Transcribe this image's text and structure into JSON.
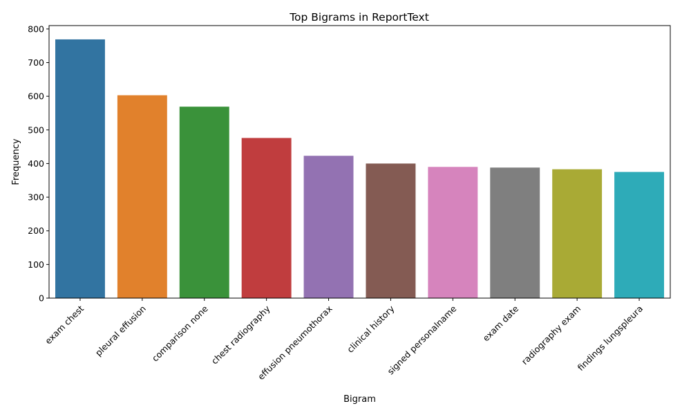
{
  "chart_data": {
    "type": "bar",
    "title": "Top Bigrams in ReportText",
    "xlabel": "Bigram",
    "ylabel": "Frequency",
    "categories": [
      "exam chest",
      "pleural effusion",
      "comparison none",
      "chest radiography",
      "effusion pneumothorax",
      "clinical history",
      "signed personalname",
      "exam date",
      "radiography exam",
      "findings lungspleura"
    ],
    "values": [
      769,
      603,
      569,
      476,
      423,
      400,
      390,
      388,
      383,
      375
    ],
    "colors": [
      "#3274a1",
      "#e1812c",
      "#3a923a",
      "#c03d3e",
      "#9372b2",
      "#845b53",
      "#d684bd",
      "#7f7f7f",
      "#a9aa35",
      "#2eabb8"
    ],
    "ylim": [
      0,
      810
    ],
    "yticks": [
      0,
      100,
      200,
      300,
      400,
      500,
      600,
      700,
      800
    ],
    "grid": false,
    "legend": "none"
  }
}
